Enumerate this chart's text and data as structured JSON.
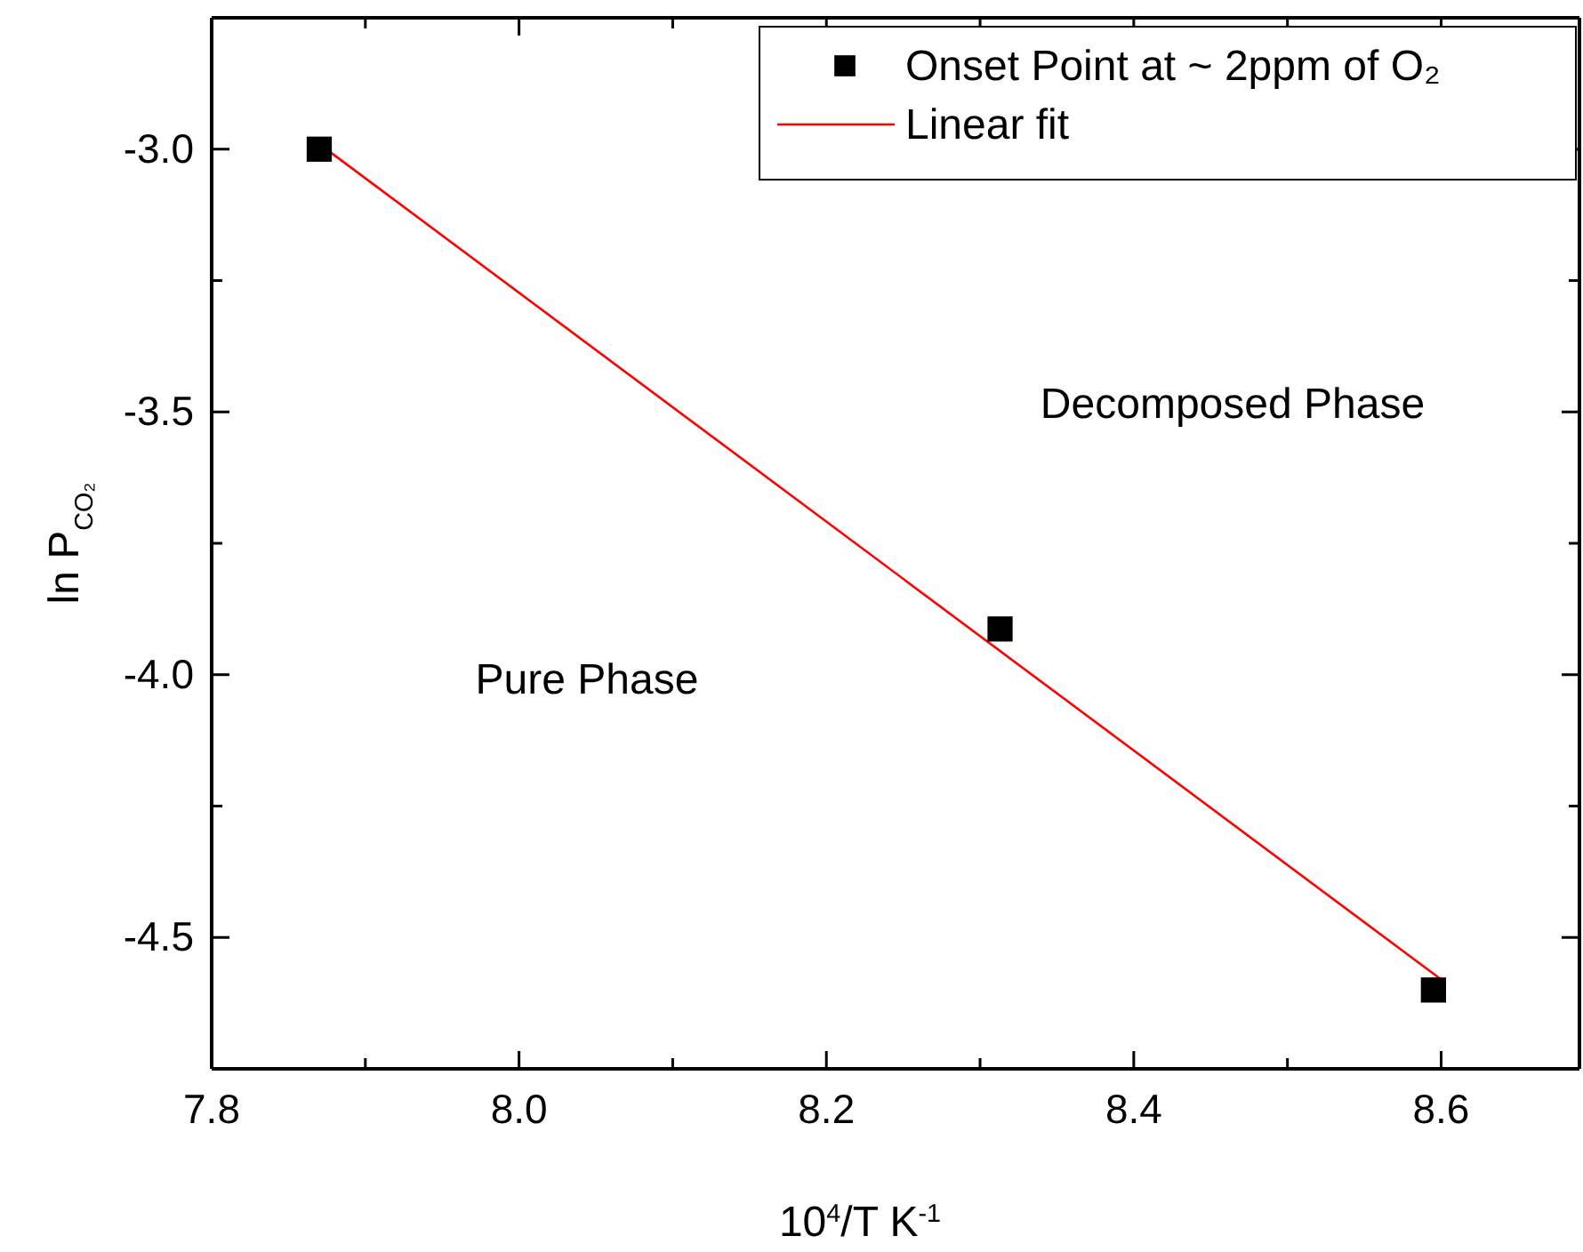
{
  "chart_data": {
    "type": "scatter",
    "xlabel": "10$^{4}$/T K$^{-1}$",
    "ylabel": "ln P$_{CO₂}$",
    "xlim": [
      7.8,
      8.69
    ],
    "ylim": [
      -4.75,
      -2.75
    ],
    "xticks": [
      7.8,
      {
        "value": 7.9,
        "label": null
      },
      "8.0",
      {
        "value": 8.1,
        "label": null
      },
      8.2,
      {
        "value": 8.3,
        "label": null
      },
      8.4,
      {
        "value": 8.5,
        "label": null
      },
      8.6
    ],
    "yticks": [
      {
        "value": -4.75,
        "label": null
      },
      -4.5,
      {
        "value": -4.25,
        "label": null
      },
      "-4.0",
      {
        "value": -3.75,
        "label": null
      },
      -3.5,
      {
        "value": -3.25,
        "label": null
      },
      "-3.0"
    ],
    "legend": "top right",
    "grid": false,
    "series": [
      {
        "name": "Onset Point at ~ 2ppm of O₂",
        "marker": "square",
        "color": "#000000",
        "x": [
          7.87,
          8.313,
          8.595
        ],
        "values": [
          -3.0,
          -3.913,
          -4.6
        ]
      },
      {
        "name": "Linear fit",
        "type": "line",
        "marker": "none",
        "line_style": "solid",
        "color": "#ff0000",
        "x": [
          7.87,
          8.6
        ],
        "values": [
          -2.99,
          -4.58
        ]
      }
    ],
    "annotations": [
      "Decomposed Phase",
      "Pure Phase"
    ]
  }
}
